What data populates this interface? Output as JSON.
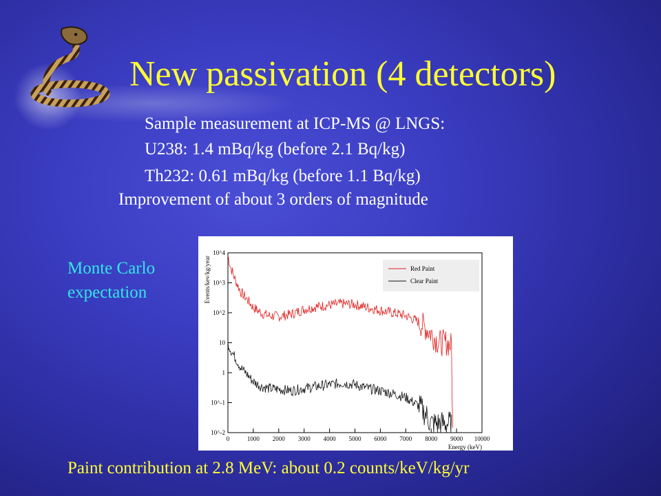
{
  "slide": {
    "title": "New passivation (4 detectors)",
    "lines": [
      "Sample measurement at ICP-MS @ LNGS:",
      "U238: 1.4 mBq/kg (before 2.1 Bq/kg)",
      "Th232: 0.61 mBq/kg (before 1.1 Bq/kg)",
      "Improvement of about 3 orders of magnitude"
    ],
    "mc_label": [
      "Monte Carlo",
      "expectation"
    ],
    "footer": "Paint contribution at 2.8 MeV: about 0.2 counts/keV/kg/yr",
    "logo_icon": "cobra-icon",
    "colors": {
      "title": "#ffff33",
      "mc_label": "#33e6e6",
      "text": "#ffffff",
      "background": "#3a3cc0"
    }
  },
  "chart_data": {
    "type": "line",
    "xlabel": "Energy (keV)",
    "ylabel": "Events/kev/kg/year",
    "xlim": [
      0,
      10000
    ],
    "ylim": [
      0.01,
      10000
    ],
    "yscale": "log",
    "x_ticks": [
      "0",
      "1000",
      "2000",
      "3000",
      "4000",
      "5000",
      "6000",
      "7000",
      "8000",
      "9000",
      "10000"
    ],
    "y_ticks": [
      "10^-2",
      "10^-1",
      "1",
      "10",
      "10^2",
      "10^3",
      "10^4"
    ],
    "legend_position": "top-right",
    "series": [
      {
        "name": "Red Paint",
        "color": "#e02020",
        "x": [
          0,
          100,
          300,
          500,
          800,
          1000,
          1300,
          1600,
          2000,
          2500,
          3000,
          3500,
          4000,
          4500,
          5000,
          5500,
          6000,
          6500,
          7000,
          7500,
          7800,
          8000,
          8300,
          8600,
          8800,
          8850
        ],
        "y": [
          8000,
          3500,
          1200,
          500,
          250,
          150,
          100,
          80,
          75,
          90,
          130,
          160,
          180,
          200,
          190,
          150,
          120,
          100,
          80,
          50,
          30,
          20,
          10,
          10,
          8,
          0.01
        ]
      },
      {
        "name": "Clear Paint",
        "color": "#111111",
        "x": [
          0,
          100,
          300,
          500,
          800,
          1000,
          1300,
          1600,
          2000,
          2500,
          3000,
          3500,
          4000,
          4500,
          5000,
          5500,
          6000,
          6500,
          7000,
          7500,
          7800,
          8000,
          8300,
          8600,
          8800
        ],
        "y": [
          10,
          6,
          3,
          1.5,
          0.8,
          0.5,
          0.35,
          0.3,
          0.28,
          0.25,
          0.3,
          0.35,
          0.4,
          0.45,
          0.4,
          0.3,
          0.25,
          0.2,
          0.15,
          0.08,
          0.04,
          0.02,
          0.02,
          0.02,
          0.02
        ]
      }
    ]
  }
}
